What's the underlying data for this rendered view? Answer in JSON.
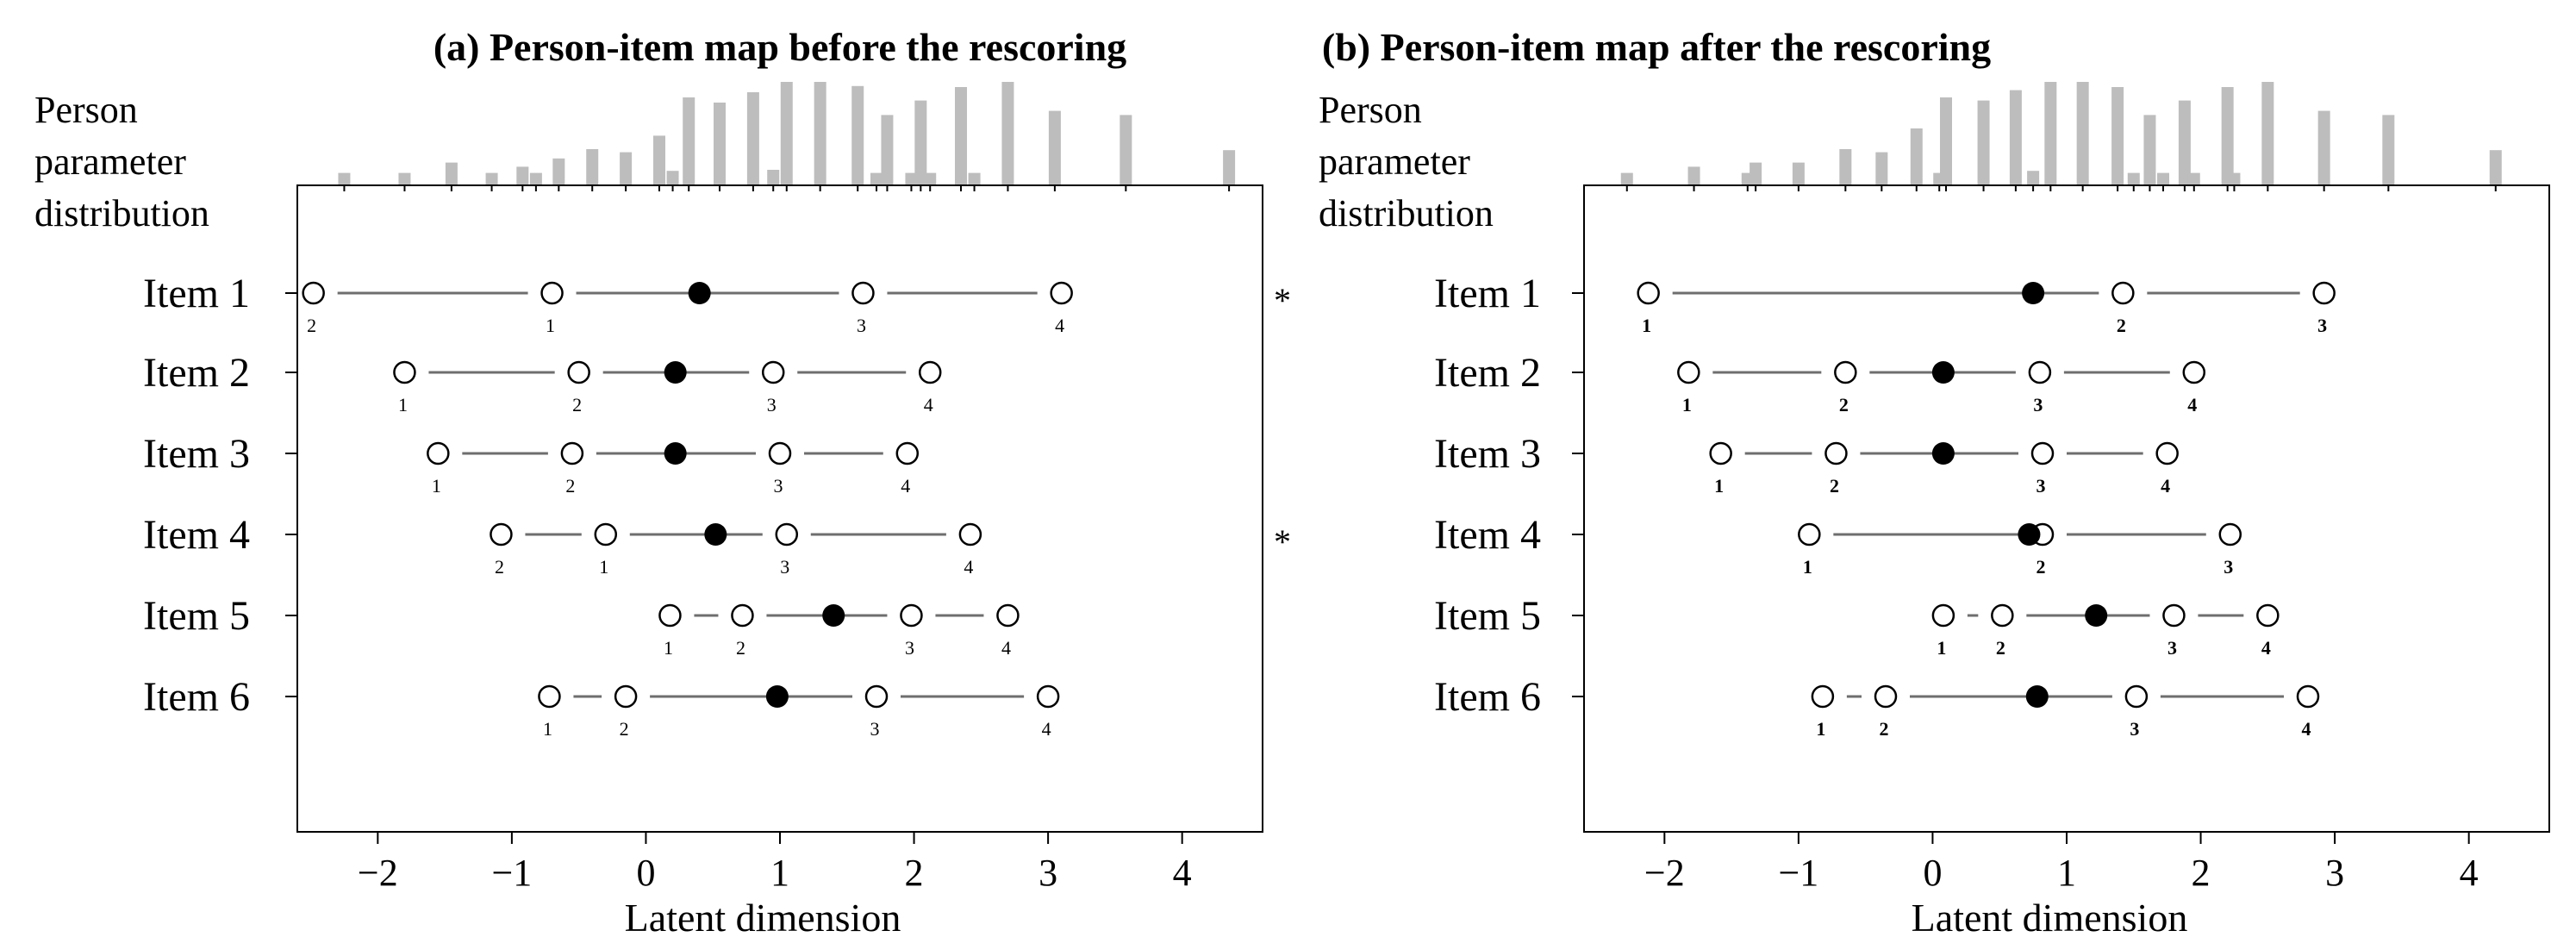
{
  "chart_data": [
    {
      "type": "person-item-map",
      "title": "(a) Person-item map before the rescoring",
      "person_label_lines": [
        "Person",
        "parameter",
        "distribution"
      ],
      "xlabel": "Latent dimension",
      "xlim": [
        -2.6,
        4.6
      ],
      "xticks": [
        -2,
        -1,
        0,
        1,
        2,
        3,
        4
      ],
      "xtick_labels": [
        "−2",
        "−1",
        "0",
        "1",
        "2",
        "3",
        "4"
      ],
      "label_weight": "normal",
      "histogram": [
        {
          "x": -2.25,
          "h": 0.12
        },
        {
          "x": -1.8,
          "h": 0.12
        },
        {
          "x": -1.45,
          "h": 0.22
        },
        {
          "x": -1.15,
          "h": 0.12
        },
        {
          "x": -0.92,
          "h": 0.18
        },
        {
          "x": -0.82,
          "h": 0.12
        },
        {
          "x": -0.65,
          "h": 0.26
        },
        {
          "x": -0.4,
          "h": 0.35
        },
        {
          "x": -0.15,
          "h": 0.32
        },
        {
          "x": 0.1,
          "h": 0.48
        },
        {
          "x": 0.2,
          "h": 0.14
        },
        {
          "x": 0.32,
          "h": 0.85
        },
        {
          "x": 0.55,
          "h": 0.8
        },
        {
          "x": 0.8,
          "h": 0.9
        },
        {
          "x": 0.95,
          "h": 0.15
        },
        {
          "x": 1.05,
          "h": 1.0
        },
        {
          "x": 1.3,
          "h": 1.0
        },
        {
          "x": 1.58,
          "h": 0.96
        },
        {
          "x": 1.72,
          "h": 0.12
        },
        {
          "x": 1.8,
          "h": 0.68
        },
        {
          "x": 1.98,
          "h": 0.12
        },
        {
          "x": 2.05,
          "h": 0.82
        },
        {
          "x": 2.12,
          "h": 0.12
        },
        {
          "x": 2.35,
          "h": 0.95
        },
        {
          "x": 2.45,
          "h": 0.12
        },
        {
          "x": 2.7,
          "h": 1.0
        },
        {
          "x": 3.05,
          "h": 0.72
        },
        {
          "x": 3.58,
          "h": 0.68
        },
        {
          "x": 4.35,
          "h": 0.34
        }
      ],
      "items": [
        {
          "label": "Item 1",
          "location": 0.4,
          "flag": "*",
          "thresholds": [
            {
              "x": -2.48,
              "cat": "2"
            },
            {
              "x": -0.7,
              "cat": "1"
            },
            {
              "x": 1.62,
              "cat": "3"
            },
            {
              "x": 3.1,
              "cat": "4"
            }
          ]
        },
        {
          "label": "Item 2",
          "location": 0.22,
          "flag": "",
          "thresholds": [
            {
              "x": -1.8,
              "cat": "1"
            },
            {
              "x": -0.5,
              "cat": "2"
            },
            {
              "x": 0.95,
              "cat": "3"
            },
            {
              "x": 2.12,
              "cat": "4"
            }
          ]
        },
        {
          "label": "Item 3",
          "location": 0.22,
          "flag": "",
          "thresholds": [
            {
              "x": -1.55,
              "cat": "1"
            },
            {
              "x": -0.55,
              "cat": "2"
            },
            {
              "x": 1.0,
              "cat": "3"
            },
            {
              "x": 1.95,
              "cat": "4"
            }
          ]
        },
        {
          "label": "Item 4",
          "location": 0.52,
          "flag": "*",
          "thresholds": [
            {
              "x": -1.08,
              "cat": "2"
            },
            {
              "x": -0.3,
              "cat": "1"
            },
            {
              "x": 1.05,
              "cat": "3"
            },
            {
              "x": 2.42,
              "cat": "4"
            }
          ]
        },
        {
          "label": "Item 5",
          "location": 1.4,
          "flag": "",
          "thresholds": [
            {
              "x": 0.18,
              "cat": "1"
            },
            {
              "x": 0.72,
              "cat": "2"
            },
            {
              "x": 1.98,
              "cat": "3"
            },
            {
              "x": 2.7,
              "cat": "4"
            }
          ]
        },
        {
          "label": "Item 6",
          "location": 0.98,
          "flag": "",
          "thresholds": [
            {
              "x": -0.72,
              "cat": "1"
            },
            {
              "x": -0.15,
              "cat": "2"
            },
            {
              "x": 1.72,
              "cat": "3"
            },
            {
              "x": 3.0,
              "cat": "4"
            }
          ]
        }
      ]
    },
    {
      "type": "person-item-map",
      "title": "(b) Person-item map after the rescoring",
      "person_label_lines": [
        "Person",
        "parameter",
        "distribution"
      ],
      "xlabel": "Latent dimension",
      "xlim": [
        -2.6,
        4.6
      ],
      "xticks": [
        -2,
        -1,
        0,
        1,
        2,
        3,
        4
      ],
      "xtick_labels": [
        "−2",
        "−1",
        "0",
        "1",
        "2",
        "3",
        "4"
      ],
      "label_weight": "bold",
      "histogram": [
        {
          "x": -2.28,
          "h": 0.12
        },
        {
          "x": -1.78,
          "h": 0.18
        },
        {
          "x": -1.38,
          "h": 0.12
        },
        {
          "x": -1.32,
          "h": 0.22
        },
        {
          "x": -1.0,
          "h": 0.22
        },
        {
          "x": -0.65,
          "h": 0.35
        },
        {
          "x": -0.38,
          "h": 0.32
        },
        {
          "x": -0.12,
          "h": 0.55
        },
        {
          "x": 0.05,
          "h": 0.12
        },
        {
          "x": 0.1,
          "h": 0.85
        },
        {
          "x": 0.38,
          "h": 0.82
        },
        {
          "x": 0.62,
          "h": 0.92
        },
        {
          "x": 0.75,
          "h": 0.14
        },
        {
          "x": 0.88,
          "h": 1.0
        },
        {
          "x": 1.12,
          "h": 1.0
        },
        {
          "x": 1.38,
          "h": 0.95
        },
        {
          "x": 1.5,
          "h": 0.12
        },
        {
          "x": 1.62,
          "h": 0.68
        },
        {
          "x": 1.72,
          "h": 0.12
        },
        {
          "x": 1.88,
          "h": 0.82
        },
        {
          "x": 1.95,
          "h": 0.12
        },
        {
          "x": 2.2,
          "h": 0.95
        },
        {
          "x": 2.25,
          "h": 0.12
        },
        {
          "x": 2.5,
          "h": 1.0
        },
        {
          "x": 2.92,
          "h": 0.72
        },
        {
          "x": 3.4,
          "h": 0.68
        },
        {
          "x": 4.2,
          "h": 0.34
        }
      ],
      "items": [
        {
          "label": "Item 1",
          "location": 0.75,
          "flag": "",
          "thresholds": [
            {
              "x": -2.12,
              "cat": "1"
            },
            {
              "x": 1.42,
              "cat": "2"
            },
            {
              "x": 2.92,
              "cat": "3"
            }
          ]
        },
        {
          "label": "Item 2",
          "location": 0.08,
          "flag": "",
          "thresholds": [
            {
              "x": -1.82,
              "cat": "1"
            },
            {
              "x": -0.65,
              "cat": "2"
            },
            {
              "x": 0.8,
              "cat": "3"
            },
            {
              "x": 1.95,
              "cat": "4"
            }
          ]
        },
        {
          "label": "Item 3",
          "location": 0.08,
          "flag": "",
          "thresholds": [
            {
              "x": -1.58,
              "cat": "1"
            },
            {
              "x": -0.72,
              "cat": "2"
            },
            {
              "x": 0.82,
              "cat": "3"
            },
            {
              "x": 1.75,
              "cat": "4"
            }
          ]
        },
        {
          "label": "Item 4",
          "location": 0.72,
          "flag": "",
          "thresholds": [
            {
              "x": -0.92,
              "cat": "1"
            },
            {
              "x": 0.82,
              "cat": "2"
            },
            {
              "x": 2.22,
              "cat": "3"
            }
          ]
        },
        {
          "label": "Item 5",
          "location": 1.22,
          "flag": "",
          "thresholds": [
            {
              "x": 0.08,
              "cat": "1"
            },
            {
              "x": 0.52,
              "cat": "2"
            },
            {
              "x": 1.8,
              "cat": "3"
            },
            {
              "x": 2.5,
              "cat": "4"
            }
          ]
        },
        {
          "label": "Item 6",
          "location": 0.78,
          "flag": "",
          "thresholds": [
            {
              "x": -0.82,
              "cat": "1"
            },
            {
              "x": -0.35,
              "cat": "2"
            },
            {
              "x": 1.52,
              "cat": "3"
            },
            {
              "x": 2.8,
              "cat": "4"
            }
          ]
        }
      ]
    }
  ]
}
